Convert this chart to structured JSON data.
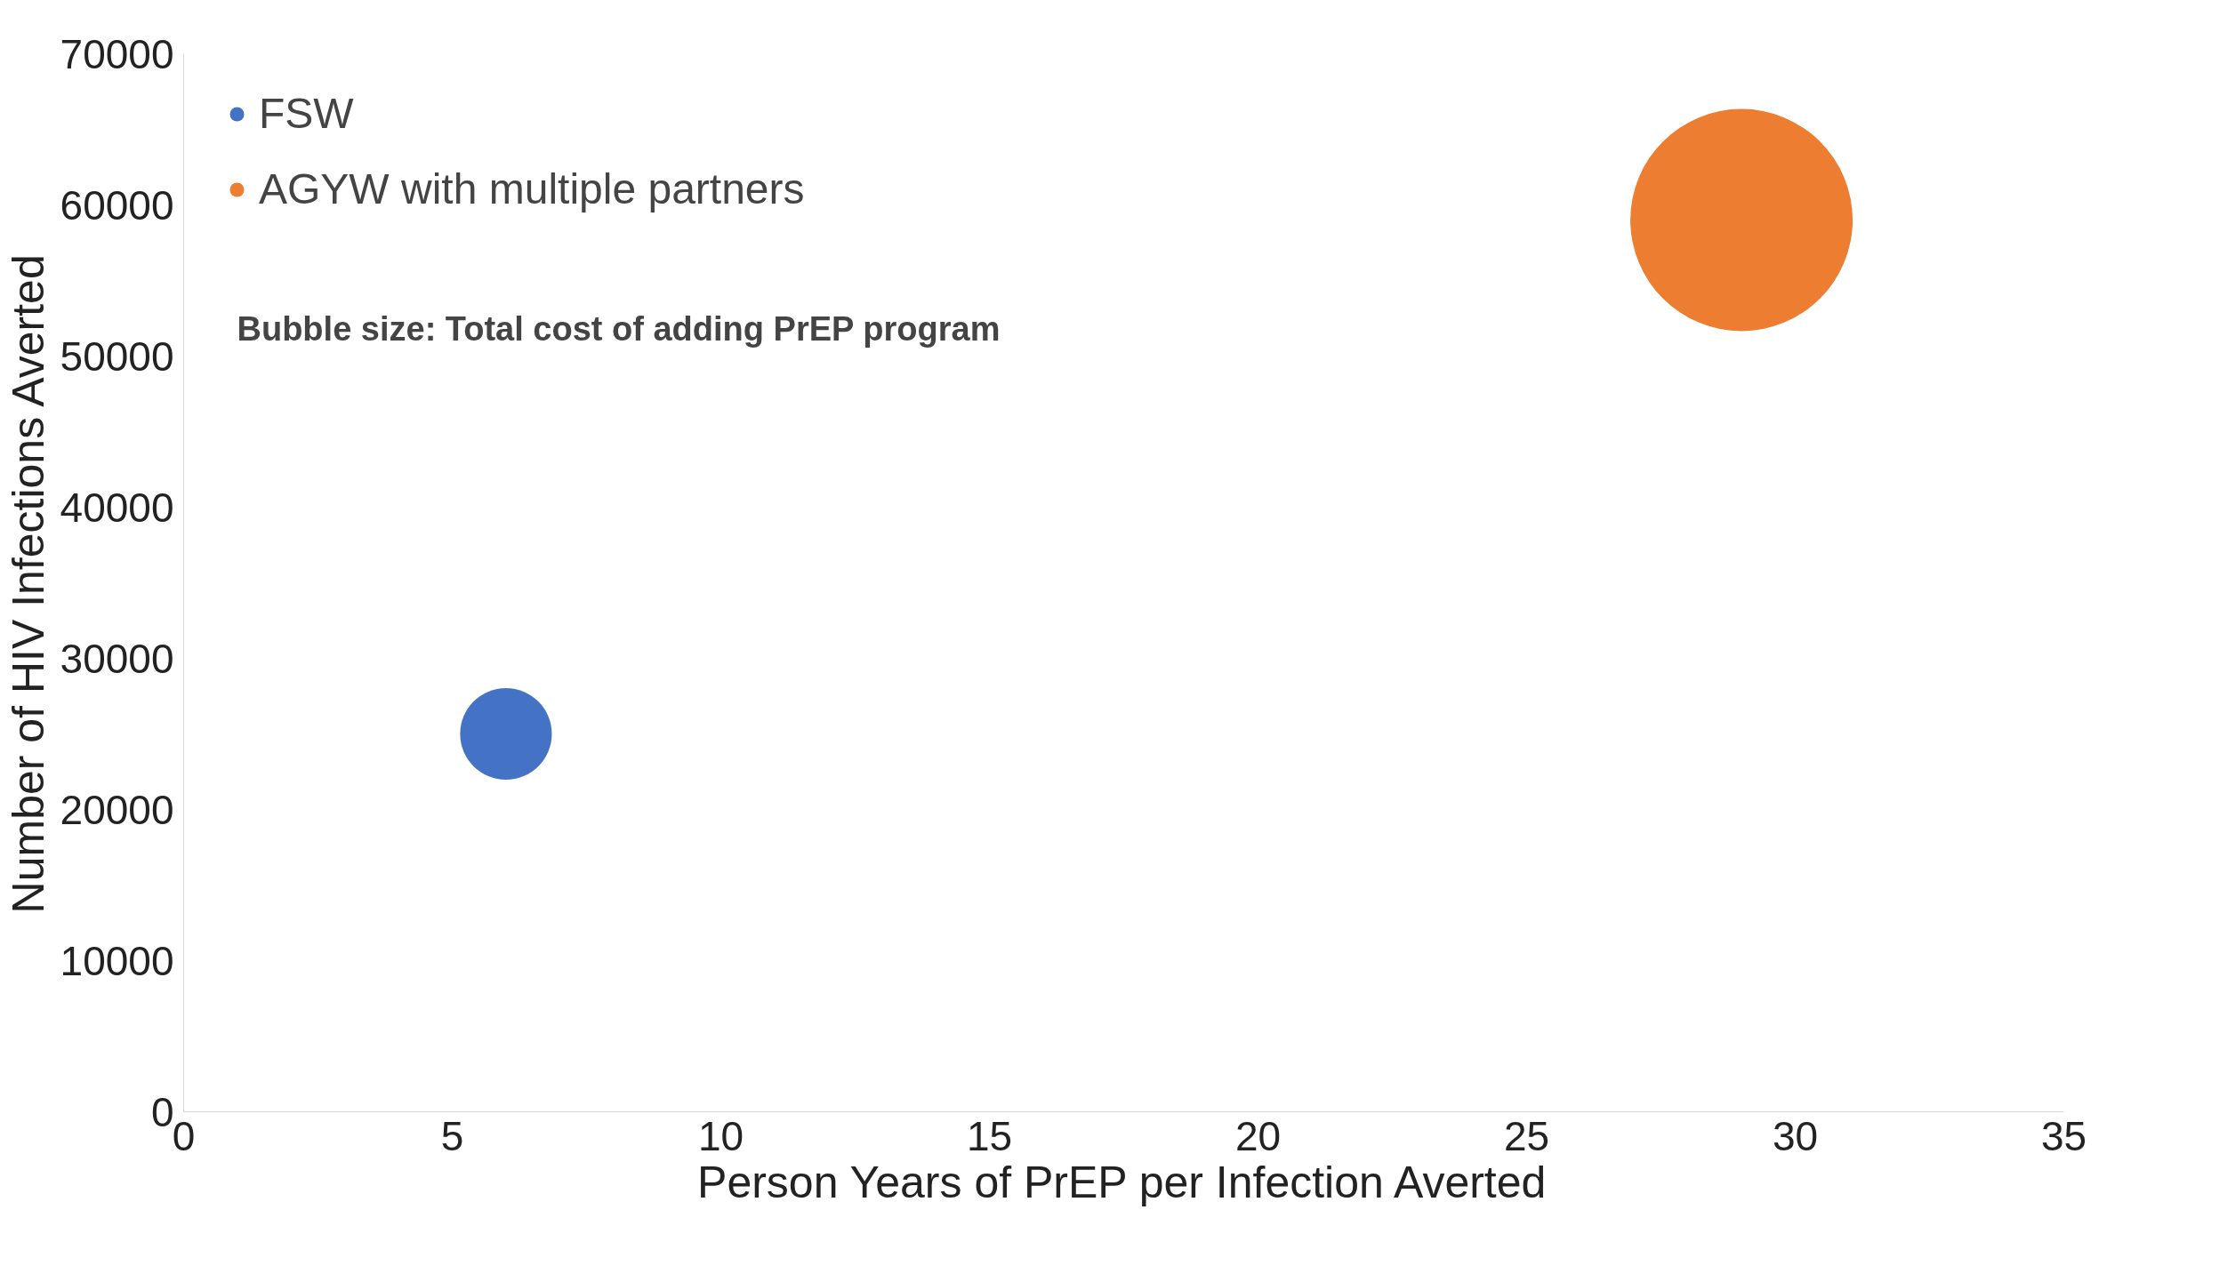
{
  "chart_data": {
    "type": "bubble",
    "xlabel": "Person Years of PrEP per Infection Averted",
    "ylabel": "Number of HIV Infections Averted",
    "xlim": [
      0,
      35
    ],
    "xticks": [
      0,
      5,
      10,
      15,
      20,
      25,
      30,
      35
    ],
    "ylim": [
      0,
      70000
    ],
    "yticks": [
      0,
      10000,
      20000,
      30000,
      40000,
      50000,
      60000,
      70000
    ],
    "grid": false,
    "legend": "top left",
    "series": [
      {
        "name": "FSW",
        "color": "#4472c4",
        "x": [
          6
        ],
        "values": [
          25000
        ],
        "sizes": [
          0.17
        ]
      },
      {
        "name": "AGYW with multiple partners",
        "color": "#ed7d31",
        "x": [
          29
        ],
        "values": [
          59000
        ],
        "sizes": [
          1
        ]
      }
    ],
    "annotations": [
      "Bubble size: Total cost of adding PrEP program"
    ]
  }
}
